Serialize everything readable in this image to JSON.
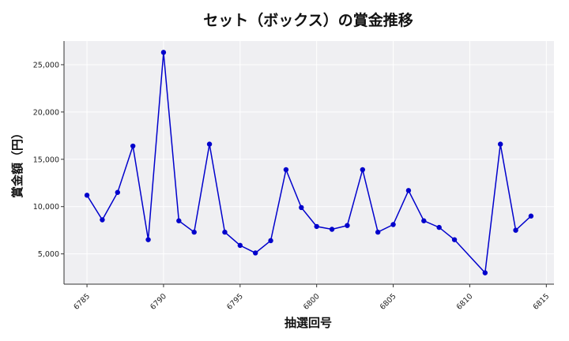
{
  "chart_data": {
    "type": "line",
    "title": "セット（ボックス）の賞金推移",
    "xlabel": "抽選回号",
    "ylabel": "賞金額（円）",
    "xlim": [
      6783.5,
      6815.5
    ],
    "ylim": [
      1800,
      27500
    ],
    "x_ticks": [
      6785,
      6790,
      6795,
      6800,
      6805,
      6810,
      6815
    ],
    "x_tick_labels": [
      "6785",
      "6790",
      "6795",
      "6800",
      "6805",
      "6810",
      "6815"
    ],
    "y_ticks": [
      5000,
      10000,
      15000,
      20000,
      25000
    ],
    "y_tick_labels": [
      "5,000",
      "10,000",
      "15,000",
      "20,000",
      "25,000"
    ],
    "grid": true,
    "colors": {
      "line": "#0000cc",
      "marker": "#0000cc",
      "plot_bg": "#efeff2",
      "grid": "#ffffff"
    },
    "series": [
      {
        "x": [
          6785,
          6786,
          6787,
          6788,
          6789,
          6790,
          6791,
          6792,
          6793,
          6794,
          6795,
          6796,
          6797,
          6798,
          6799,
          6800,
          6801,
          6802,
          6803,
          6804,
          6805,
          6806,
          6807,
          6808,
          6809,
          6811,
          6812,
          6813,
          6814
        ],
        "values": [
          11200,
          8600,
          11500,
          16400,
          6500,
          26300,
          8500,
          7300,
          16600,
          7300,
          5900,
          5100,
          6400,
          13900,
          9900,
          7900,
          7600,
          8000,
          13900,
          7300,
          8100,
          11700,
          8500,
          7800,
          6500,
          3000,
          16600,
          7500,
          9000
        ]
      }
    ]
  }
}
